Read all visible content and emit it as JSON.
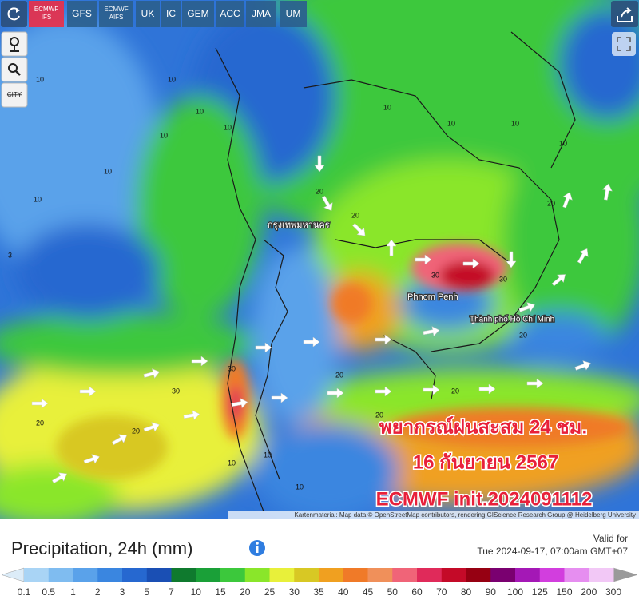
{
  "toolbar": {
    "tabs": [
      "ECMWF IFS",
      "GFS",
      "ECMWF AIFS",
      "UK",
      "IC",
      "GEM",
      "ACC",
      "JMA",
      "UM"
    ],
    "active": 0,
    "city_button": "CITY"
  },
  "map": {
    "city_labels": [
      "กรุงเทพมหานคร",
      "Phnom Penh",
      "Thành phố Hồ Chí Minh"
    ],
    "contour_labels": [
      10,
      10,
      3,
      10,
      10,
      10,
      10,
      10,
      10,
      10,
      10,
      10,
      20,
      20,
      30,
      30,
      20,
      20,
      20,
      20,
      20,
      20,
      20,
      10,
      10,
      10,
      30,
      30
    ],
    "overlay": [
      "พยากรณ์ฝนสะสม 24 ชม.",
      "16 กันยายน 2567",
      "ECMWF init.2024091112"
    ],
    "attribution": "Kartenmaterial: Map data © OpenStreetMap contributors, rendering GIScience Research Group @ Heidelberg University"
  },
  "legend": {
    "title": "Precipitation, 24h (mm)",
    "valid_for": "Valid for",
    "valid_time": "Tue 2024-09-17, 07:00am GMT+07",
    "labels": [
      0.1,
      0.5,
      1,
      2,
      3,
      5,
      7,
      10,
      15,
      20,
      25,
      30,
      35,
      40,
      45,
      50,
      60,
      70,
      80,
      90,
      100,
      125,
      150,
      200,
      300
    ],
    "colors": [
      "#a9d4f5",
      "#7fbcf0",
      "#5aa2ea",
      "#3a86e0",
      "#2668d0",
      "#1a4fb4",
      "#0f7a2e",
      "#1aa038",
      "#3cc83c",
      "#8ae62a",
      "#e8f03a",
      "#d8c824",
      "#f0a020",
      "#f07a28",
      "#f0905a",
      "#f06478",
      "#e02a5a",
      "#c40a28",
      "#960012",
      "#7a0070",
      "#a418b6",
      "#d23ede",
      "#e68ef0",
      "#f2c8f6"
    ],
    "under_color": "#dcecf8",
    "over_color": "#9a9a9a"
  }
}
